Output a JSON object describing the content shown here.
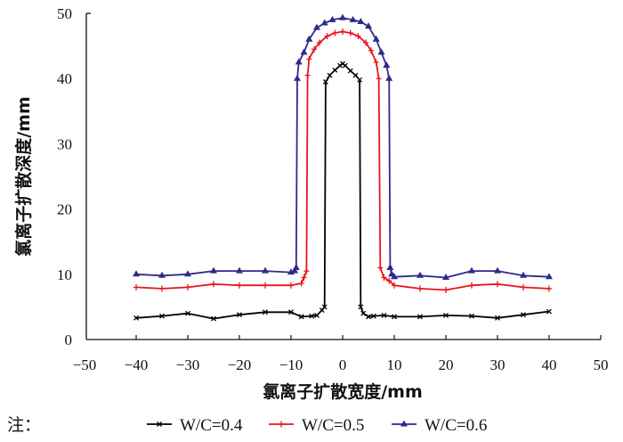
{
  "chart_data": {
    "type": "line",
    "title": "",
    "xlabel": "氯离子扩散宽度/mm",
    "ylabel": "氯离子扩散深度/mm",
    "xlim": [
      -50,
      50
    ],
    "ylim": [
      0,
      50
    ],
    "xticks": [
      "-50",
      "-40",
      "-30",
      "-20",
      "-10",
      "0",
      "10",
      "20",
      "30",
      "40",
      "50"
    ],
    "yticks": [
      "0",
      "10",
      "20",
      "30",
      "40",
      "50"
    ],
    "grid": false,
    "legend_position": "bottom",
    "legend_prefix": "注：",
    "series": [
      {
        "name": "W/C=0.4",
        "color": "#000000",
        "marker": "x",
        "points": [
          [
            -40,
            3.3
          ],
          [
            -35,
            3.6
          ],
          [
            -30,
            4.0
          ],
          [
            -25,
            3.2
          ],
          [
            -20,
            3.8
          ],
          [
            -15,
            4.2
          ],
          [
            -10,
            4.2
          ],
          [
            -8,
            3.5
          ],
          [
            -6,
            3.6
          ],
          [
            -5,
            3.7
          ],
          [
            -4,
            4.5
          ],
          [
            -3.5,
            5.0
          ],
          [
            -3.3,
            39.5
          ],
          [
            -2.5,
            40.5
          ],
          [
            -1.5,
            41.3
          ],
          [
            -0.5,
            42.0
          ],
          [
            0,
            42.3
          ],
          [
            0.5,
            42.0
          ],
          [
            1.5,
            41.2
          ],
          [
            2.5,
            40.5
          ],
          [
            3.3,
            39.8
          ],
          [
            3.5,
            5.0
          ],
          [
            4,
            4.0
          ],
          [
            5,
            3.5
          ],
          [
            6,
            3.6
          ],
          [
            8,
            3.7
          ],
          [
            10,
            3.5
          ],
          [
            15,
            3.5
          ],
          [
            20,
            3.7
          ],
          [
            25,
            3.6
          ],
          [
            30,
            3.3
          ],
          [
            35,
            3.8
          ],
          [
            40,
            4.3
          ]
        ]
      },
      {
        "name": "W/C=0.5",
        "color": "#e8141c",
        "marker": "+",
        "points": [
          [
            -40,
            8.0
          ],
          [
            -35,
            7.8
          ],
          [
            -30,
            8.0
          ],
          [
            -25,
            8.5
          ],
          [
            -20,
            8.3
          ],
          [
            -15,
            8.3
          ],
          [
            -10,
            8.3
          ],
          [
            -8,
            8.6
          ],
          [
            -7.5,
            9.5
          ],
          [
            -7,
            10.5
          ],
          [
            -6.8,
            40.5
          ],
          [
            -6.5,
            43.0
          ],
          [
            -5.5,
            44.5
          ],
          [
            -4.5,
            45.5
          ],
          [
            -3,
            46.5
          ],
          [
            -1.5,
            47.0
          ],
          [
            0,
            47.2
          ],
          [
            1.5,
            47.0
          ],
          [
            3,
            46.5
          ],
          [
            4.5,
            45.5
          ],
          [
            5.5,
            44.3
          ],
          [
            6.5,
            42.5
          ],
          [
            7,
            40.0
          ],
          [
            7.3,
            11.0
          ],
          [
            8,
            9.5
          ],
          [
            9,
            9.0
          ],
          [
            10,
            8.3
          ],
          [
            15,
            7.8
          ],
          [
            20,
            7.6
          ],
          [
            25,
            8.3
          ],
          [
            30,
            8.5
          ],
          [
            35,
            8.0
          ],
          [
            40,
            7.8
          ]
        ]
      },
      {
        "name": "W/C=0.6",
        "color": "#2e2a8c",
        "marker": "triangle",
        "points": [
          [
            -40,
            10.0
          ],
          [
            -35,
            9.8
          ],
          [
            -30,
            10.0
          ],
          [
            -25,
            10.5
          ],
          [
            -20,
            10.5
          ],
          [
            -15,
            10.5
          ],
          [
            -10,
            10.3
          ],
          [
            -9.3,
            10.5
          ],
          [
            -9,
            11.0
          ],
          [
            -8.8,
            40.0
          ],
          [
            -8.5,
            42.5
          ],
          [
            -7.5,
            44.0
          ],
          [
            -6.5,
            46.0
          ],
          [
            -5,
            47.8
          ],
          [
            -3.5,
            48.5
          ],
          [
            -2,
            49.0
          ],
          [
            0,
            49.3
          ],
          [
            2,
            49.0
          ],
          [
            3.5,
            48.7
          ],
          [
            5,
            48.0
          ],
          [
            6.5,
            46.0
          ],
          [
            7.5,
            44.0
          ],
          [
            8.5,
            42.0
          ],
          [
            9,
            40.0
          ],
          [
            9.2,
            11.0
          ],
          [
            9.5,
            10.0
          ],
          [
            10,
            9.6
          ],
          [
            15,
            9.8
          ],
          [
            20,
            9.5
          ],
          [
            25,
            10.5
          ],
          [
            30,
            10.5
          ],
          [
            35,
            9.8
          ],
          [
            40,
            9.6
          ]
        ]
      }
    ]
  }
}
